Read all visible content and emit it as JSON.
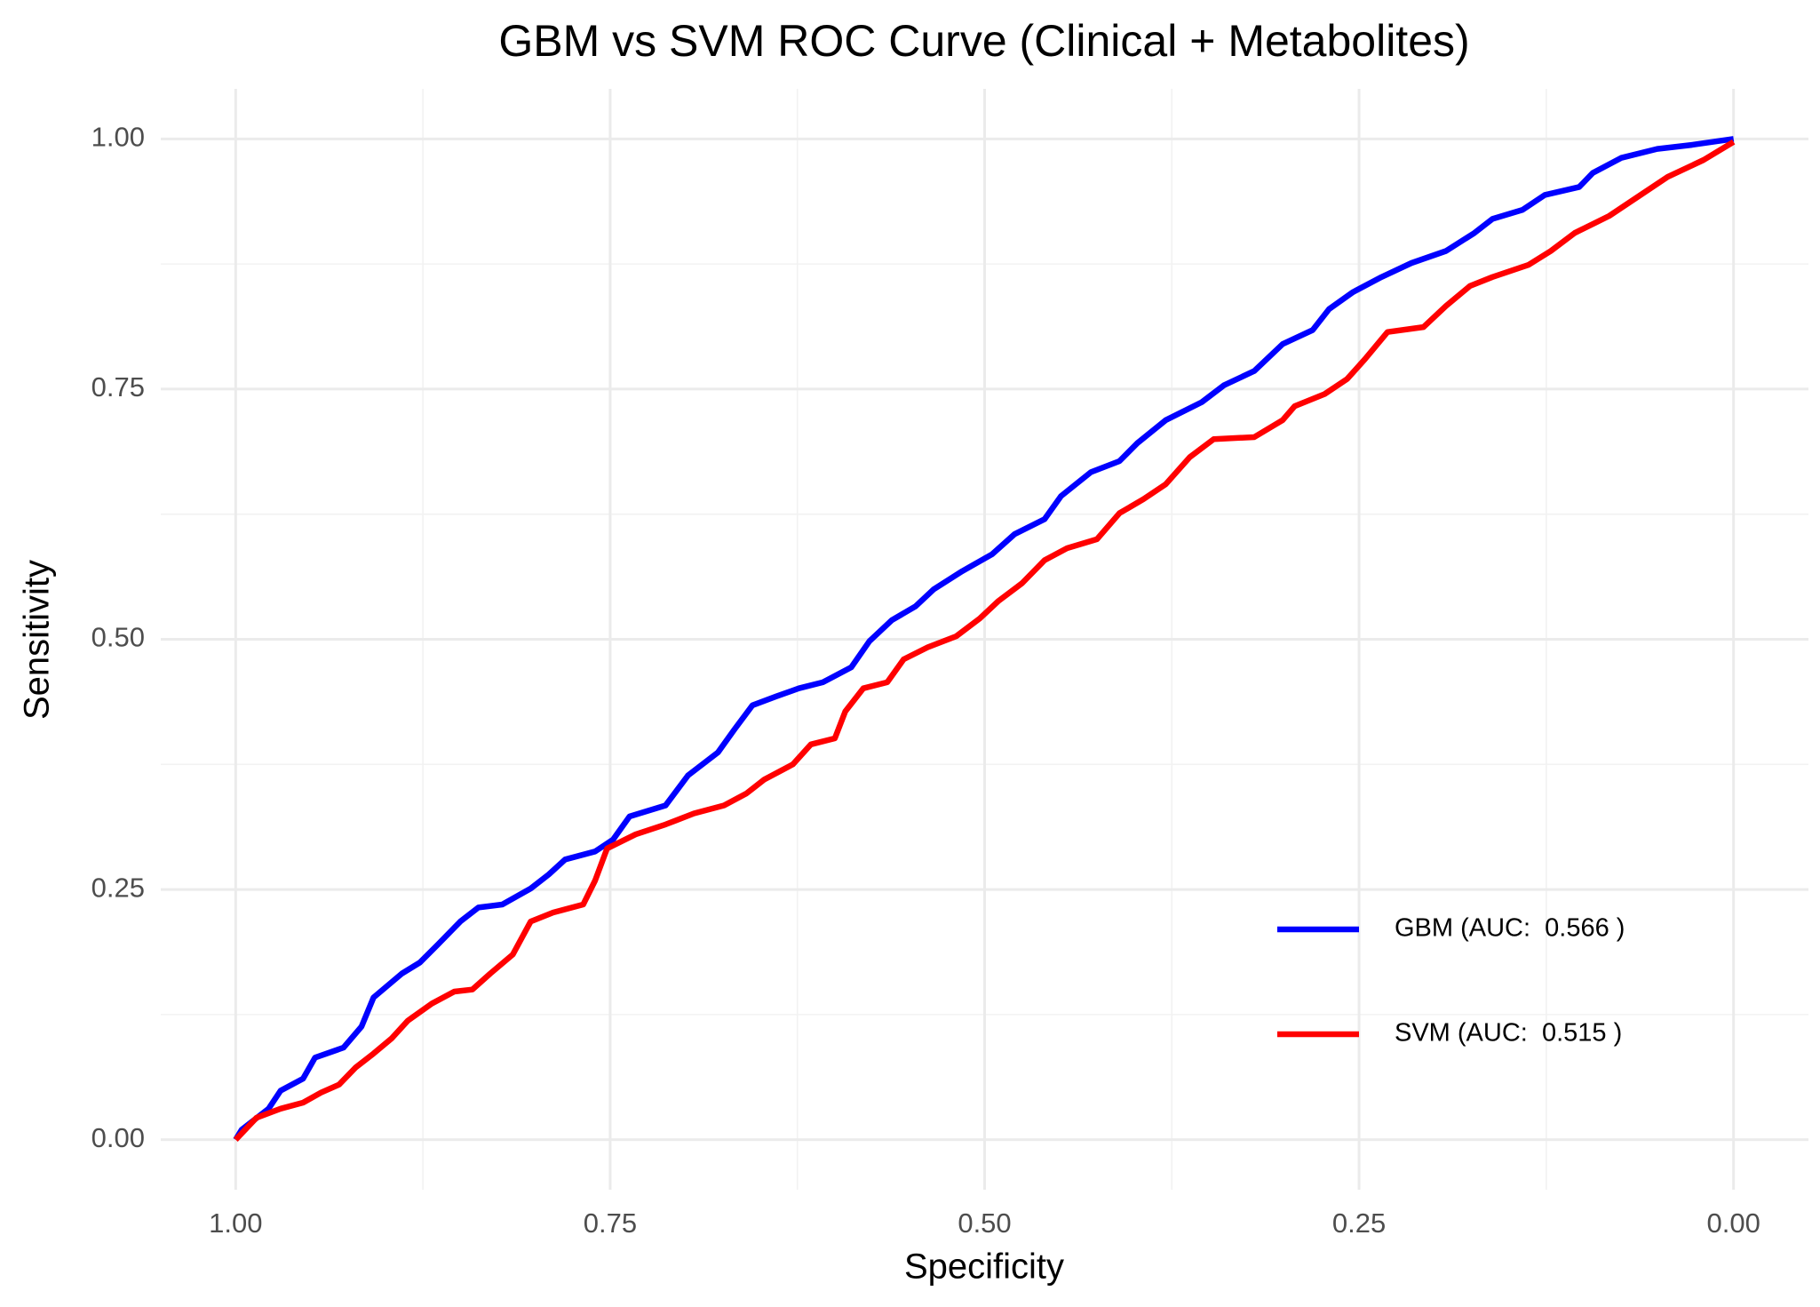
{
  "chart_data": {
    "type": "line",
    "title": "GBM vs SVM ROC Curve (Clinical + Metabolites)",
    "x_label": "Specificity",
    "y_label": "Sensitivity",
    "xlim": [
      1.05,
      -0.05
    ],
    "ylim": [
      -0.05,
      1.05
    ],
    "xticks": [
      {
        "value": 1,
        "label": "1.00"
      },
      0.75,
      {
        "value": 0.5,
        "label": "0.50"
      },
      0.25,
      {
        "value": 0,
        "label": "0.00"
      }
    ],
    "yticks": [
      {
        "value": 0,
        "label": "0.00"
      },
      0.25,
      {
        "value": 0.5,
        "label": "0.50"
      },
      0.75,
      {
        "value": 1,
        "label": "1.00"
      }
    ],
    "grid": true,
    "legend_position": "bottom-right",
    "series": [
      {
        "name": "GBM (AUC:  0.566 )",
        "color": "#0000ff",
        "x": [
          1,
          0.996,
          0.978,
          0.97,
          0.955,
          0.947,
          0.928,
          0.916,
          0.908,
          0.889,
          0.877,
          0.865,
          0.85,
          0.838,
          0.822,
          0.803,
          0.791,
          0.78,
          0.76,
          0.748,
          0.737,
          0.713,
          0.698,
          0.678,
          0.667,
          0.655,
          0.639,
          0.624,
          0.608,
          0.589,
          0.577,
          0.562,
          0.546,
          0.534,
          0.515,
          0.495,
          0.48,
          0.46,
          0.449,
          0.429,
          0.41,
          0.398,
          0.379,
          0.355,
          0.34,
          0.32,
          0.301,
          0.281,
          0.27,
          0.254,
          0.235,
          0.215,
          0.192,
          0.173,
          0.161,
          0.141,
          0.126,
          0.103,
          0.094,
          0.075,
          0.051,
          0.028,
          0
        ],
        "values": [
          0,
          0.01,
          0.031,
          0.049,
          0.061,
          0.082,
          0.092,
          0.113,
          0.142,
          0.166,
          0.177,
          0.195,
          0.218,
          0.232,
          0.235,
          0.251,
          0.265,
          0.28,
          0.288,
          0.3,
          0.323,
          0.334,
          0.364,
          0.387,
          0.41,
          0.434,
          0.443,
          0.451,
          0.457,
          0.472,
          0.498,
          0.519,
          0.533,
          0.55,
          0.568,
          0.585,
          0.605,
          0.62,
          0.643,
          0.667,
          0.678,
          0.696,
          0.719,
          0.737,
          0.754,
          0.768,
          0.795,
          0.809,
          0.83,
          0.847,
          0.862,
          0.876,
          0.888,
          0.906,
          0.92,
          0.929,
          0.944,
          0.952,
          0.966,
          0.981,
          0.99,
          0.994,
          1
        ]
      },
      {
        "name": "SVM (AUC:  0.515 )",
        "color": "#ff0000",
        "x": [
          1,
          0.986,
          0.97,
          0.955,
          0.943,
          0.931,
          0.92,
          0.908,
          0.896,
          0.885,
          0.869,
          0.854,
          0.842,
          0.83,
          0.815,
          0.803,
          0.788,
          0.768,
          0.76,
          0.752,
          0.733,
          0.713,
          0.694,
          0.674,
          0.659,
          0.647,
          0.628,
          0.616,
          0.6,
          0.593,
          0.581,
          0.565,
          0.554,
          0.538,
          0.519,
          0.503,
          0.491,
          0.475,
          0.46,
          0.445,
          0.425,
          0.41,
          0.394,
          0.379,
          0.363,
          0.347,
          0.32,
          0.301,
          0.293,
          0.273,
          0.258,
          0.246,
          0.231,
          0.207,
          0.192,
          0.176,
          0.161,
          0.137,
          0.122,
          0.106,
          0.083,
          0.063,
          0.044,
          0.02,
          0
        ],
        "values": [
          0,
          0.022,
          0.031,
          0.037,
          0.047,
          0.055,
          0.072,
          0.086,
          0.101,
          0.119,
          0.136,
          0.148,
          0.15,
          0.166,
          0.185,
          0.218,
          0.227,
          0.235,
          0.259,
          0.291,
          0.305,
          0.315,
          0.326,
          0.334,
          0.346,
          0.36,
          0.375,
          0.395,
          0.401,
          0.428,
          0.451,
          0.457,
          0.48,
          0.492,
          0.503,
          0.521,
          0.538,
          0.556,
          0.579,
          0.591,
          0.6,
          0.626,
          0.64,
          0.655,
          0.682,
          0.7,
          0.702,
          0.719,
          0.733,
          0.745,
          0.76,
          0.78,
          0.807,
          0.812,
          0.833,
          0.853,
          0.862,
          0.874,
          0.888,
          0.906,
          0.923,
          0.943,
          0.962,
          0.979,
          0.997
        ]
      }
    ]
  }
}
